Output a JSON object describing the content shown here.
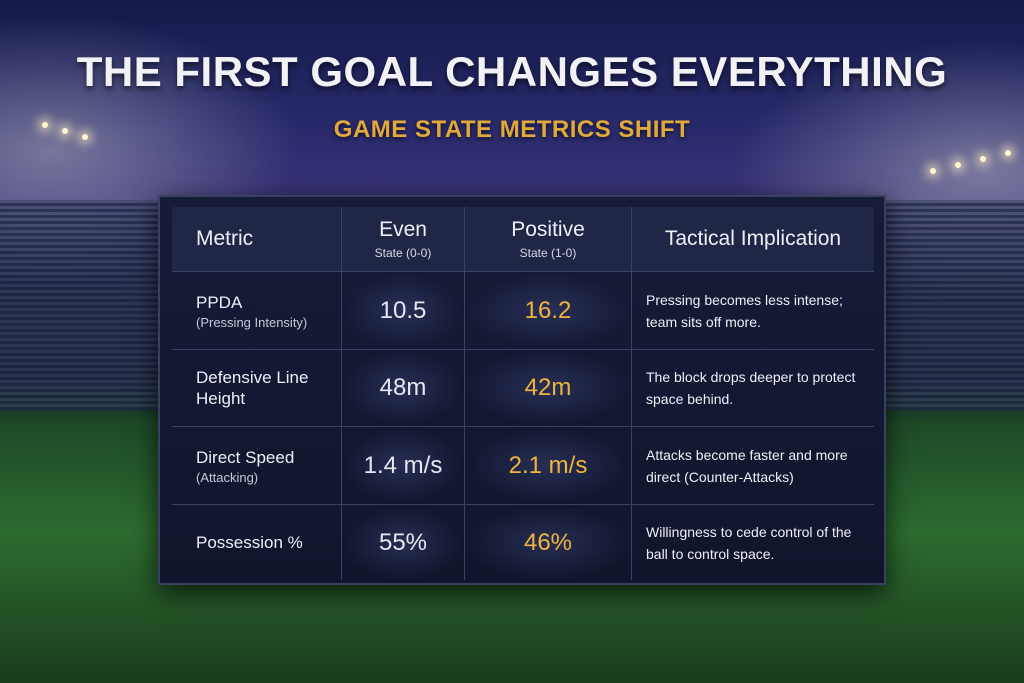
{
  "header": {
    "title": "THE FIRST GOAL CHANGES EVERYTHING",
    "subtitle": "GAME STATE METRICS SHIFT"
  },
  "table": {
    "columns": [
      {
        "title": "Metric"
      },
      {
        "title": "Even",
        "subtitle": "State (0-0)"
      },
      {
        "title": "Positive",
        "subtitle": "State (1-0)"
      },
      {
        "title": "Tactical Implication"
      }
    ],
    "rows": [
      {
        "metric": "PPDA",
        "note": "(Pressing Intensity)",
        "even": "10.5",
        "positive": "16.2",
        "implication": "Pressing becomes less intense; team sits off more."
      },
      {
        "metric": "Defensive Line Height",
        "even": "48m",
        "positive": "42m",
        "implication": "The block drops deeper to protect space behind."
      },
      {
        "metric": "Direct Speed",
        "note": "(Attacking)",
        "even": "1.4 m/s",
        "positive": "2.1 m/s",
        "implication": "Attacks become faster and more direct (Counter-Attacks)"
      },
      {
        "metric": "Possession %",
        "even": "55%",
        "positive": "46%",
        "implication": "Willingness to cede control of the ball to control space."
      }
    ]
  }
}
